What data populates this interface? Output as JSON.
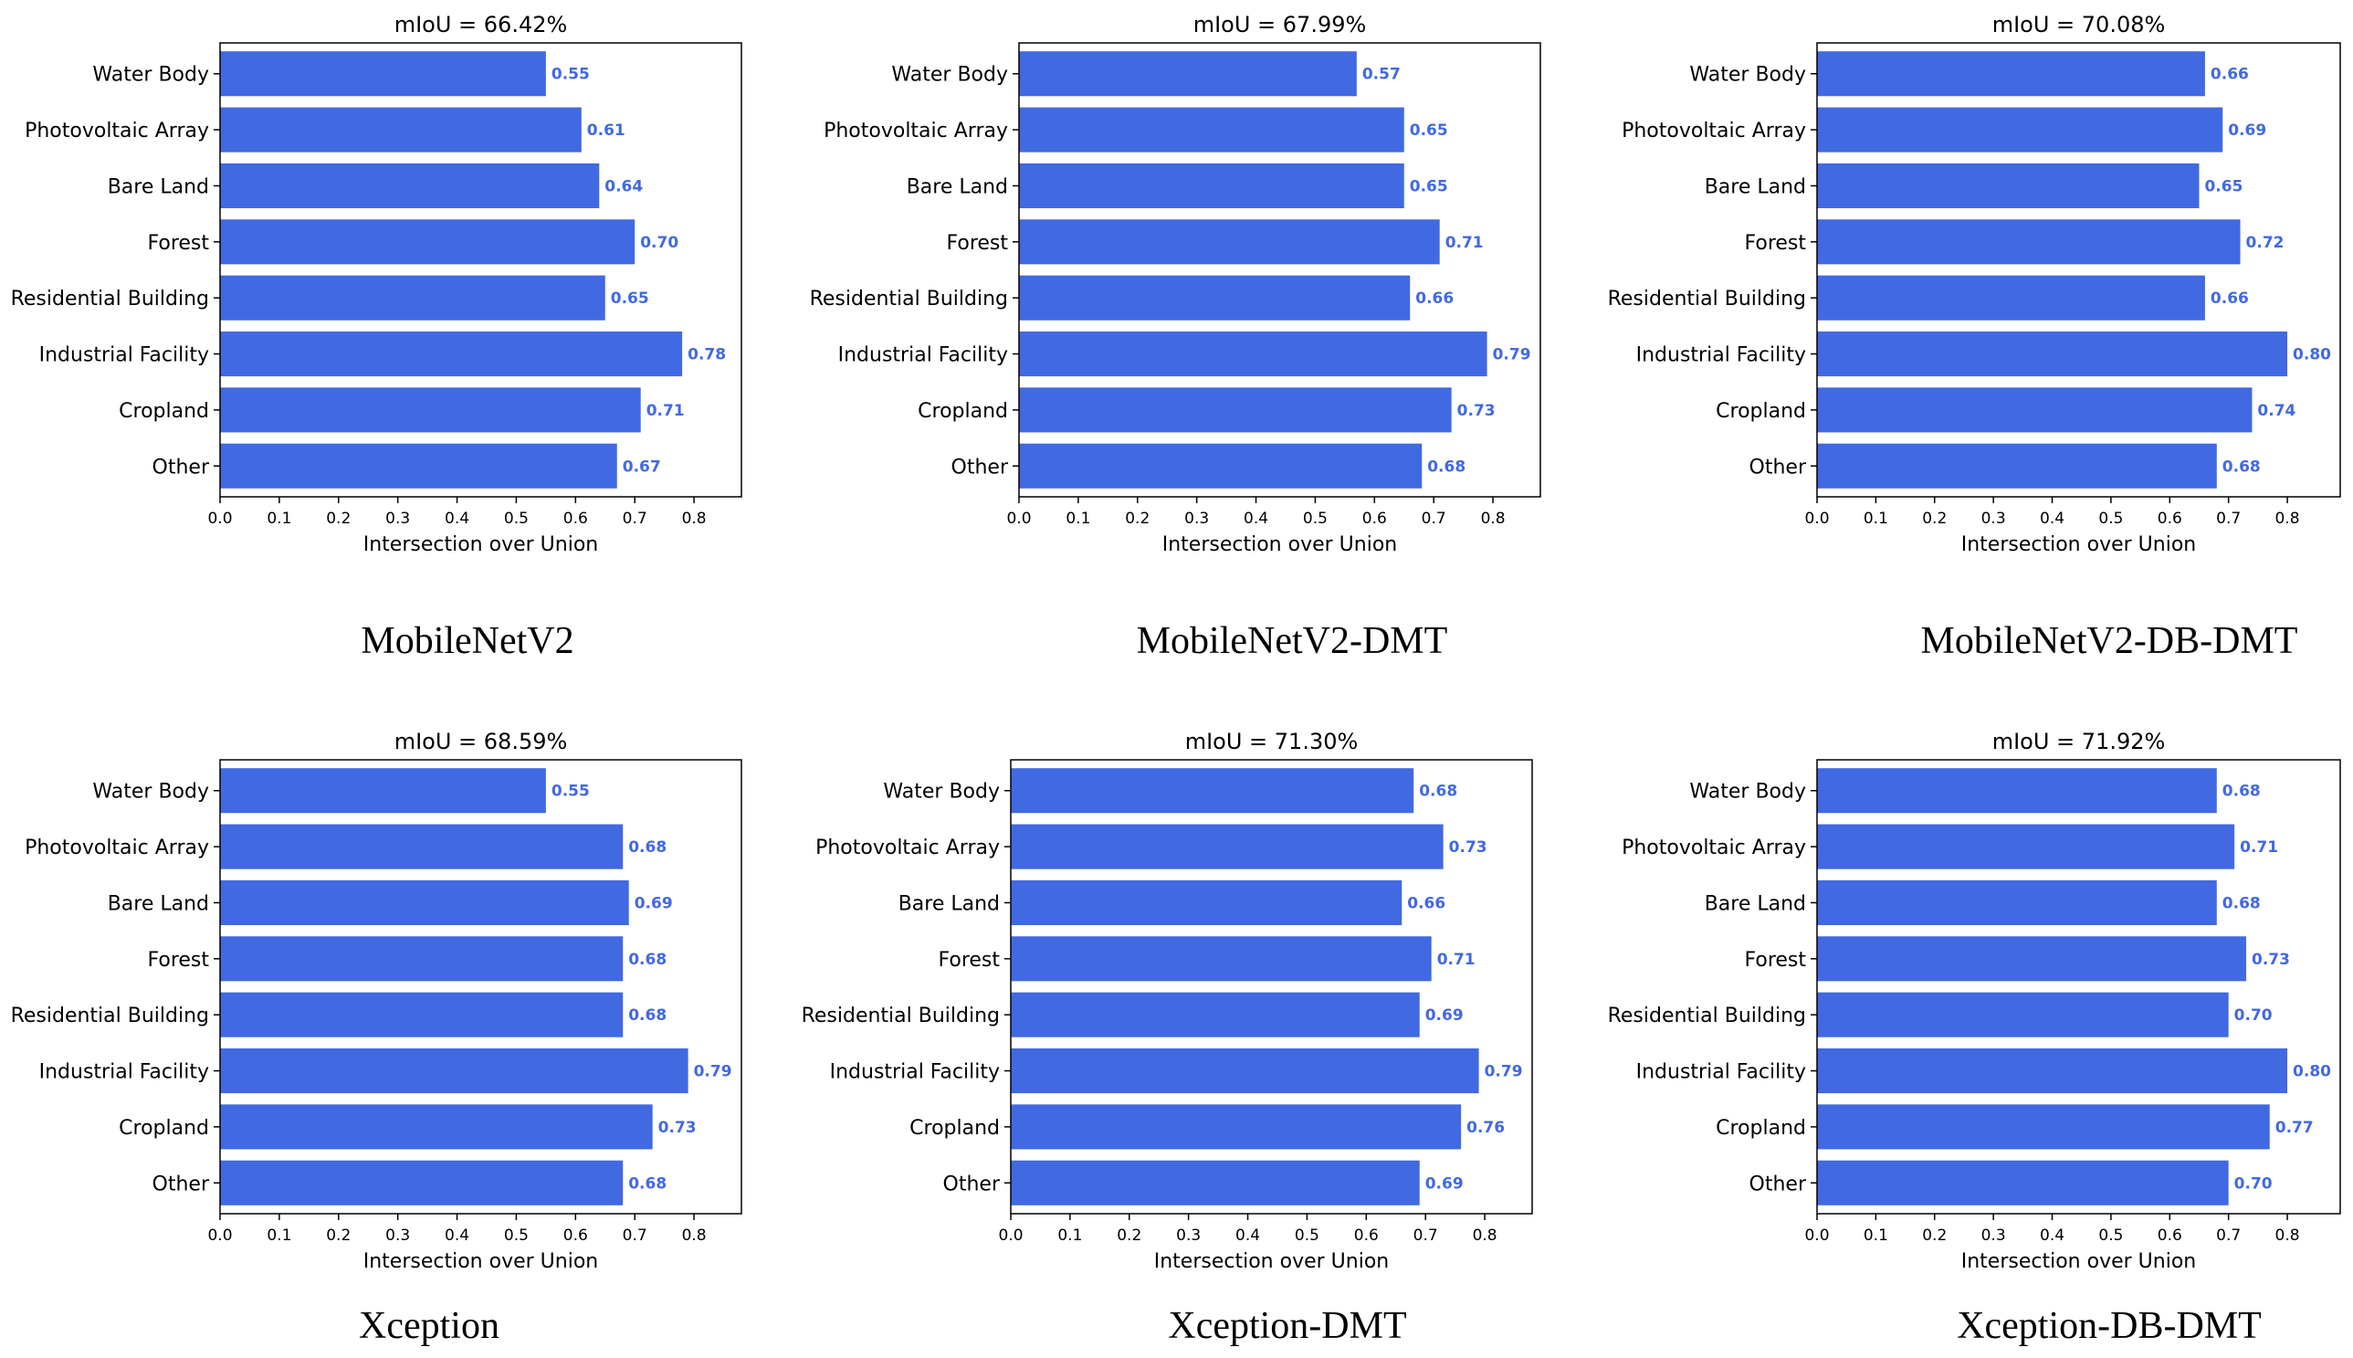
{
  "chart_data": [
    {
      "type": "bar",
      "orientation": "horizontal",
      "title": "mIoU = 66.42%",
      "caption": "MobileNetV2",
      "xlabel": "Intersection over Union",
      "ylabel": "",
      "xlim": [
        0,
        0.88
      ],
      "xticks": [
        "0.0",
        "0.1",
        "0.2",
        "0.3",
        "0.4",
        "0.5",
        "0.6",
        "0.7",
        "0.8"
      ],
      "categories": [
        "Water Body",
        "Photovoltaic Array",
        "Bare Land",
        "Forest",
        "Residential Building",
        "Industrial Facility",
        "Cropland",
        "Other"
      ],
      "values": [
        0.55,
        0.61,
        0.64,
        0.7,
        0.65,
        0.78,
        0.71,
        0.67
      ],
      "value_labels": [
        "0.55",
        "0.61",
        "0.64",
        "0.70",
        "0.65",
        "0.78",
        "0.71",
        "0.67"
      ],
      "bar_color": "#4169E1",
      "grid": false
    },
    {
      "type": "bar",
      "orientation": "horizontal",
      "title": "mIoU = 67.99%",
      "caption": "MobileNetV2-DMT",
      "xlabel": "Intersection over Union",
      "ylabel": "",
      "xlim": [
        0,
        0.88
      ],
      "xticks": [
        "0.0",
        "0.1",
        "0.2",
        "0.3",
        "0.4",
        "0.5",
        "0.6",
        "0.7",
        "0.8"
      ],
      "categories": [
        "Water Body",
        "Photovoltaic Array",
        "Bare Land",
        "Forest",
        "Residential Building",
        "Industrial Facility",
        "Cropland",
        "Other"
      ],
      "values": [
        0.57,
        0.65,
        0.65,
        0.71,
        0.66,
        0.79,
        0.73,
        0.68
      ],
      "value_labels": [
        "0.57",
        "0.65",
        "0.65",
        "0.71",
        "0.66",
        "0.79",
        "0.73",
        "0.68"
      ],
      "bar_color": "#4169E1",
      "grid": false
    },
    {
      "type": "bar",
      "orientation": "horizontal",
      "title": "mIoU = 70.08%",
      "caption": "MobileNetV2-DB-DMT",
      "xlabel": "Intersection over Union",
      "ylabel": "",
      "xlim": [
        0,
        0.89
      ],
      "xticks": [
        "0.0",
        "0.1",
        "0.2",
        "0.3",
        "0.4",
        "0.5",
        "0.6",
        "0.7",
        "0.8"
      ],
      "categories": [
        "Water Body",
        "Photovoltaic Array",
        "Bare Land",
        "Forest",
        "Residential Building",
        "Industrial Facility",
        "Cropland",
        "Other"
      ],
      "values": [
        0.66,
        0.69,
        0.65,
        0.72,
        0.66,
        0.8,
        0.74,
        0.68
      ],
      "value_labels": [
        "0.66",
        "0.69",
        "0.65",
        "0.72",
        "0.66",
        "0.80",
        "0.74",
        "0.68"
      ],
      "bar_color": "#4169E1",
      "grid": false
    },
    {
      "type": "bar",
      "orientation": "horizontal",
      "title": "mIoU = 68.59%",
      "caption": "Xception",
      "xlabel": "Intersection over Union",
      "ylabel": "",
      "xlim": [
        0,
        0.88
      ],
      "xticks": [
        "0.0",
        "0.1",
        "0.2",
        "0.3",
        "0.4",
        "0.5",
        "0.6",
        "0.7",
        "0.8"
      ],
      "categories": [
        "Water Body",
        "Photovoltaic Array",
        "Bare Land",
        "Forest",
        "Residential Building",
        "Industrial Facility",
        "Cropland",
        "Other"
      ],
      "values": [
        0.55,
        0.68,
        0.69,
        0.68,
        0.68,
        0.79,
        0.73,
        0.68
      ],
      "value_labels": [
        "0.55",
        "0.68",
        "0.69",
        "0.68",
        "0.68",
        "0.79",
        "0.73",
        "0.68"
      ],
      "bar_color": "#4169E1",
      "grid": false
    },
    {
      "type": "bar",
      "orientation": "horizontal",
      "title": "mIoU = 71.30%",
      "caption": "Xception-DMT",
      "xlabel": "Intersection over Union",
      "ylabel": "",
      "xlim": [
        0,
        0.88
      ],
      "xticks": [
        "0.0",
        "0.1",
        "0.2",
        "0.3",
        "0.4",
        "0.5",
        "0.6",
        "0.7",
        "0.8"
      ],
      "categories": [
        "Water Body",
        "Photovoltaic Array",
        "Bare Land",
        "Forest",
        "Residential Building",
        "Industrial Facility",
        "Cropland",
        "Other"
      ],
      "values": [
        0.68,
        0.73,
        0.66,
        0.71,
        0.69,
        0.79,
        0.76,
        0.69
      ],
      "value_labels": [
        "0.68",
        "0.73",
        "0.66",
        "0.71",
        "0.69",
        "0.79",
        "0.76",
        "0.69"
      ],
      "bar_color": "#4169E1",
      "grid": false
    },
    {
      "type": "bar",
      "orientation": "horizontal",
      "title": "mIoU = 71.92%",
      "caption": "Xception-DB-DMT",
      "xlabel": "Intersection over Union",
      "ylabel": "",
      "xlim": [
        0,
        0.89
      ],
      "xticks": [
        "0.0",
        "0.1",
        "0.2",
        "0.3",
        "0.4",
        "0.5",
        "0.6",
        "0.7",
        "0.8"
      ],
      "categories": [
        "Water Body",
        "Photovoltaic Array",
        "Bare Land",
        "Forest",
        "Residential Building",
        "Industrial Facility",
        "Cropland",
        "Other"
      ],
      "values": [
        0.68,
        0.71,
        0.68,
        0.73,
        0.7,
        0.8,
        0.77,
        0.7
      ],
      "value_labels": [
        "0.68",
        "0.71",
        "0.68",
        "0.73",
        "0.70",
        "0.80",
        "0.77",
        "0.70"
      ],
      "bar_color": "#4169E1",
      "grid": false
    }
  ]
}
